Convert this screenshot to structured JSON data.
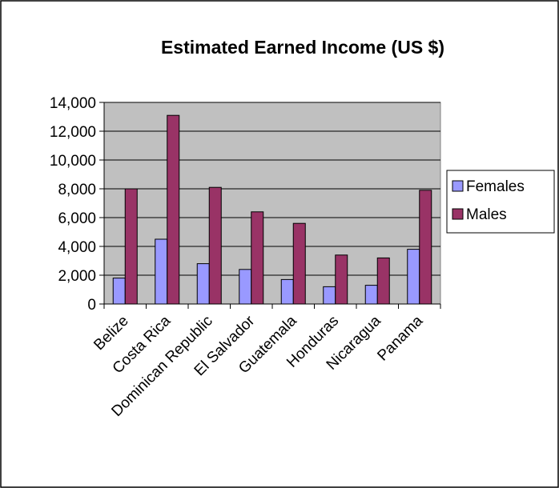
{
  "chart_data": {
    "type": "bar",
    "title": "Estimated Earned Income (US $)",
    "xlabel": "",
    "ylabel": "",
    "categories": [
      "Belize",
      "Costa Rica",
      "Dominican Republic",
      "El Salvador",
      "Guatemala",
      "Honduras",
      "Nicaragua",
      "Panama"
    ],
    "series": [
      {
        "name": "Females",
        "color": "#9999FF",
        "values": [
          1800,
          4500,
          2800,
          2400,
          1700,
          1200,
          1300,
          3800
        ]
      },
      {
        "name": "Males",
        "color": "#993366",
        "values": [
          8000,
          13100,
          8100,
          6400,
          5600,
          3400,
          3200,
          7900
        ]
      }
    ],
    "ylim": [
      0,
      14000
    ],
    "yticks": [
      0,
      2000,
      4000,
      6000,
      8000,
      10000,
      12000,
      14000
    ],
    "ytick_labels": [
      "0",
      "2,000",
      "4,000",
      "6,000",
      "8,000",
      "10,000",
      "12,000",
      "14,000"
    ],
    "grid": true,
    "plot_background": "#C0C0C0",
    "legend_position": "right"
  }
}
